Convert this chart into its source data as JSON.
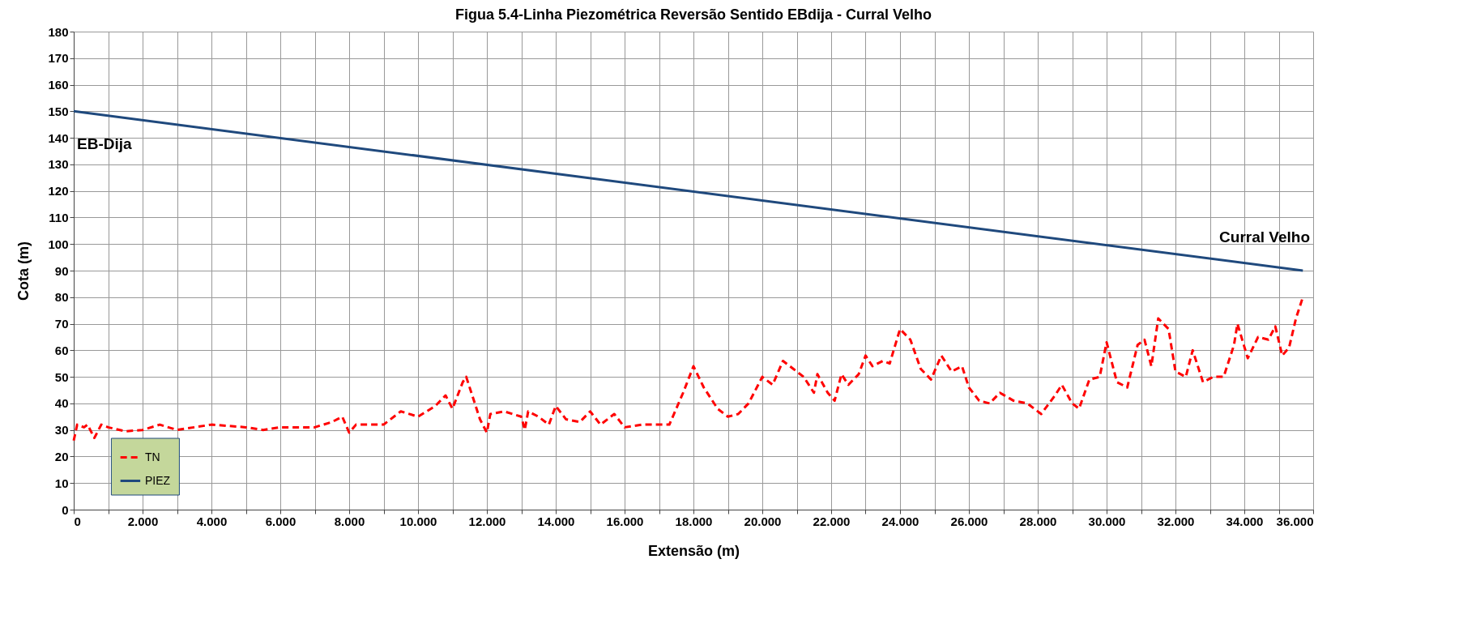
{
  "chart_data": {
    "type": "line",
    "title": "Figua 5.4-Linha Piezométrica Reversão Sentido EBdija - Curral Velho",
    "xlabel": "Extensão (m)",
    "ylabel": "Cota (m)",
    "xlim": [
      0,
      36
    ],
    "ylim": [
      0,
      180
    ],
    "xticks": [
      {
        "value": 0,
        "label": "0"
      },
      {
        "value": 1,
        "label": null
      },
      {
        "value": 2,
        "label": "2.000"
      },
      {
        "value": 3,
        "label": null
      },
      {
        "value": 4,
        "label": "4.000"
      },
      {
        "value": 5,
        "label": null
      },
      {
        "value": 6,
        "label": "6.000"
      },
      {
        "value": 7,
        "label": null
      },
      {
        "value": 8,
        "label": "8.000"
      },
      {
        "value": 9,
        "label": null
      },
      {
        "value": 10,
        "label": "10.000"
      },
      {
        "value": 11,
        "label": null
      },
      {
        "value": 12,
        "label": "12.000"
      },
      {
        "value": 13,
        "label": null
      },
      {
        "value": 14,
        "label": "14.000"
      },
      {
        "value": 15,
        "label": null
      },
      {
        "value": 16,
        "label": "16.000"
      },
      {
        "value": 17,
        "label": null
      },
      {
        "value": 18,
        "label": "18.000"
      },
      {
        "value": 19,
        "label": null
      },
      {
        "value": 20,
        "label": "20.000"
      },
      {
        "value": 21,
        "label": null
      },
      {
        "value": 22,
        "label": "22.000"
      },
      {
        "value": 23,
        "label": null
      },
      {
        "value": 24,
        "label": "24.000"
      },
      {
        "value": 25,
        "label": null
      },
      {
        "value": 26,
        "label": "26.000"
      },
      {
        "value": 27,
        "label": null
      },
      {
        "value": 28,
        "label": "28.000"
      },
      {
        "value": 29,
        "label": null
      },
      {
        "value": 30,
        "label": "30.000"
      },
      {
        "value": 31,
        "label": null
      },
      {
        "value": 32,
        "label": "32.000"
      },
      {
        "value": 33,
        "label": null
      },
      {
        "value": 34,
        "label": "34.000"
      },
      {
        "value": 35,
        "label": null
      },
      {
        "value": 36,
        "label": "36.000"
      }
    ],
    "yticks": [
      0,
      10,
      20,
      30,
      40,
      50,
      60,
      70,
      80,
      90,
      100,
      110,
      120,
      130,
      140,
      150,
      160,
      170,
      180
    ],
    "grid": true,
    "legend": "bottom left",
    "annotations": [
      "EB-Dija",
      "Curral Velho"
    ],
    "series": [
      {
        "name": "TN",
        "color": "#ff0000",
        "line_style": "dashed",
        "x": [
          0,
          0.1,
          0.3,
          0.4,
          0.6,
          0.8,
          1,
          1.5,
          2,
          2.5,
          3,
          3.5,
          4,
          5,
          5.5,
          6,
          7,
          7.5,
          7.8,
          8,
          8.2,
          9,
          9.5,
          10,
          10.5,
          10.8,
          11,
          11.3,
          11.4,
          11.6,
          11.8,
          12,
          12.1,
          12.5,
          13,
          13.1,
          13.2,
          13.5,
          13.8,
          14,
          14.3,
          14.7,
          15,
          15.3,
          15.7,
          16,
          16.5,
          17,
          17.3,
          17.7,
          18,
          18.3,
          18.7,
          19,
          19.3,
          19.6,
          20,
          20.3,
          20.6,
          20.9,
          21.2,
          21.5,
          21.6,
          21.9,
          22.1,
          22.3,
          22.5,
          22.8,
          23,
          23.2,
          23.5,
          23.7,
          24,
          24.3,
          24.6,
          24.9,
          25.2,
          25.5,
          25.8,
          26,
          26.3,
          26.6,
          26.9,
          27.3,
          27.7,
          28.1,
          28.5,
          28.7,
          29,
          29.2,
          29.5,
          29.8,
          30,
          30.3,
          30.6,
          30.9,
          31.1,
          31.3,
          31.5,
          31.8,
          32,
          32.3,
          32.5,
          32.8,
          33.1,
          33.4,
          33.7,
          33.8,
          34.1,
          34.4,
          34.7,
          34.9,
          35.1,
          35.3,
          35.5,
          35.7
        ],
        "values": [
          26,
          32,
          31,
          32,
          27,
          32,
          31,
          29.5,
          30,
          32,
          30,
          31,
          32,
          31,
          30,
          31,
          31,
          33,
          35,
          29,
          32,
          32,
          37,
          35,
          39,
          43,
          38,
          48,
          50,
          42,
          34,
          29,
          36,
          37,
          35,
          30,
          37,
          35,
          32,
          39,
          34,
          33,
          37,
          32,
          36,
          31,
          32,
          32,
          32,
          44,
          54,
          46,
          38,
          35,
          36,
          40,
          50,
          47,
          56,
          53,
          50,
          44,
          51,
          44,
          41,
          51,
          47,
          51,
          58,
          54,
          56,
          55,
          68,
          64,
          53,
          49,
          58,
          52,
          54,
          46,
          41,
          40,
          44,
          41,
          40,
          36,
          43,
          47,
          40,
          38,
          49,
          50,
          63,
          48,
          46,
          62,
          64,
          54,
          72,
          68,
          52,
          50,
          60,
          48,
          50,
          50,
          62,
          70,
          57,
          65,
          64,
          69,
          58,
          61,
          72,
          80
        ]
      },
      {
        "name": "PIEZ",
        "color": "#1f497d",
        "line_style": "solid",
        "x": [
          0,
          35.7
        ],
        "values": [
          150,
          90
        ]
      }
    ]
  }
}
